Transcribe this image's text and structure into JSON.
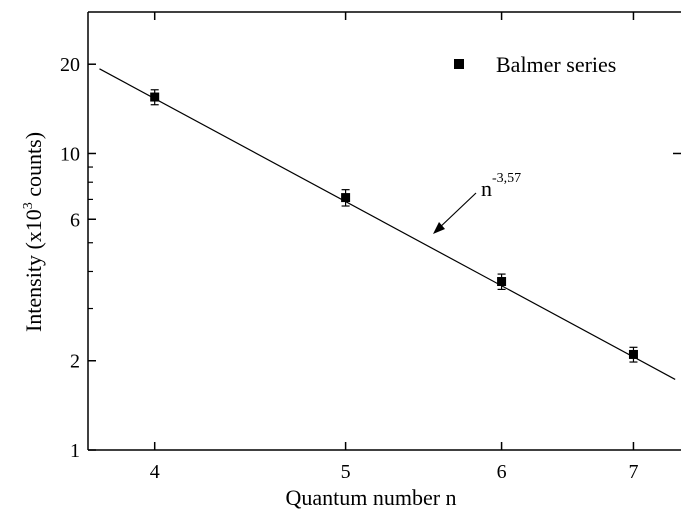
{
  "chart_data": {
    "type": "scatter",
    "title": "",
    "xlabel": "Quantum number n",
    "ylabel_parts": [
      "Intensity (x10",
      "3",
      " counts)"
    ],
    "x_scale": "log",
    "y_scale": "log",
    "xlim": [
      3.7,
      7.4
    ],
    "ylim": [
      1,
      30
    ],
    "x_ticks": [
      4,
      5,
      6,
      7
    ],
    "y_ticks_major": [
      1,
      2,
      6,
      10,
      20
    ],
    "y_ticks_minor": [
      3,
      4,
      5,
      7,
      8,
      9
    ],
    "grid": false,
    "legend": {
      "position": "top-right",
      "entries": [
        "Balmer series"
      ]
    },
    "series": [
      {
        "name": "Balmer series",
        "marker": "square",
        "points": [
          {
            "x": 4,
            "y": 15.5,
            "err": 0.9
          },
          {
            "x": 5,
            "y": 7.1,
            "err": 0.45
          },
          {
            "x": 6,
            "y": 3.7,
            "err": 0.22
          },
          {
            "x": 7,
            "y": 2.1,
            "err": 0.12
          }
        ]
      }
    ],
    "fit_line": {
      "x": [
        3.75,
        7.35
      ],
      "y": [
        19.3,
        1.73
      ]
    },
    "annotation": {
      "base": "n",
      "exponent": "-3,57"
    },
    "colors": {
      "axis": "#000000",
      "marker": "#000000",
      "line": "#000000"
    }
  }
}
